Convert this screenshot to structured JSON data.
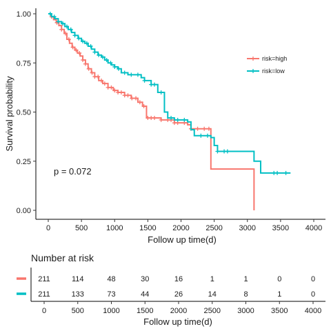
{
  "chart_data": {
    "type": "line",
    "subtype": "kaplan-meier",
    "xlabel": "Follow up time(d)",
    "ylabel": "Survival probability",
    "xlim": [
      0,
      4000
    ],
    "ylim": [
      0,
      1
    ],
    "x_ticks": [
      0,
      500,
      1000,
      1500,
      2000,
      2500,
      3000,
      3500,
      4000
    ],
    "y_ticks": [
      "0.00",
      "0.25",
      "0.50",
      "0.75",
      "1.00"
    ],
    "grid": false,
    "legend_position": "right",
    "annotation": "p = 0.072",
    "series": [
      {
        "name": "risk=high",
        "color": "#f8766d",
        "steps": [
          [
            0,
            1.0
          ],
          [
            40,
            0.985
          ],
          [
            80,
            0.97
          ],
          [
            120,
            0.955
          ],
          [
            160,
            0.94
          ],
          [
            200,
            0.92
          ],
          [
            240,
            0.9
          ],
          [
            280,
            0.87
          ],
          [
            320,
            0.85
          ],
          [
            360,
            0.83
          ],
          [
            400,
            0.815
          ],
          [
            440,
            0.8
          ],
          [
            480,
            0.785
          ],
          [
            520,
            0.765
          ],
          [
            560,
            0.745
          ],
          [
            600,
            0.72
          ],
          [
            650,
            0.7
          ],
          [
            700,
            0.68
          ],
          [
            760,
            0.66
          ],
          [
            820,
            0.645
          ],
          [
            900,
            0.625
          ],
          [
            980,
            0.61
          ],
          [
            1050,
            0.6
          ],
          [
            1150,
            0.585
          ],
          [
            1250,
            0.57
          ],
          [
            1350,
            0.55
          ],
          [
            1420,
            0.53
          ],
          [
            1480,
            0.47
          ],
          [
            1700,
            0.46
          ],
          [
            1900,
            0.445
          ],
          [
            2100,
            0.435
          ],
          [
            2150,
            0.415
          ],
          [
            2450,
            0.21
          ],
          [
            3100,
            0.0
          ]
        ],
        "end_x": 3100,
        "censor_x": [
          50,
          130,
          200,
          260,
          310,
          370,
          420,
          470,
          520,
          560,
          610,
          660,
          700,
          750,
          800,
          850,
          900,
          950,
          1000,
          1050,
          1100,
          1150,
          1200,
          1260,
          1320,
          1380,
          1440,
          1500,
          1550,
          1600,
          1700,
          1800,
          1850,
          1900,
          1950,
          2050,
          2150,
          2250,
          2350,
          2420
        ]
      },
      {
        "name": "risk=low",
        "color": "#00bfc4",
        "steps": [
          [
            0,
            1.0
          ],
          [
            50,
            0.985
          ],
          [
            100,
            0.975
          ],
          [
            150,
            0.96
          ],
          [
            200,
            0.95
          ],
          [
            250,
            0.935
          ],
          [
            300,
            0.92
          ],
          [
            350,
            0.905
          ],
          [
            400,
            0.89
          ],
          [
            450,
            0.875
          ],
          [
            500,
            0.86
          ],
          [
            550,
            0.85
          ],
          [
            600,
            0.835
          ],
          [
            650,
            0.82
          ],
          [
            700,
            0.805
          ],
          [
            750,
            0.79
          ],
          [
            800,
            0.78
          ],
          [
            850,
            0.765
          ],
          [
            900,
            0.75
          ],
          [
            950,
            0.74
          ],
          [
            1000,
            0.73
          ],
          [
            1050,
            0.72
          ],
          [
            1100,
            0.7
          ],
          [
            1200,
            0.69
          ],
          [
            1400,
            0.675
          ],
          [
            1450,
            0.66
          ],
          [
            1550,
            0.64
          ],
          [
            1650,
            0.6
          ],
          [
            1750,
            0.5
          ],
          [
            1800,
            0.47
          ],
          [
            1900,
            0.46
          ],
          [
            2100,
            0.45
          ],
          [
            2150,
            0.41
          ],
          [
            2200,
            0.38
          ],
          [
            2450,
            0.37
          ],
          [
            2500,
            0.33
          ],
          [
            2550,
            0.3
          ],
          [
            3100,
            0.25
          ],
          [
            3200,
            0.19
          ],
          [
            3650,
            0.19
          ]
        ],
        "end_x": 3650,
        "censor_x": [
          30,
          90,
          150,
          220,
          280,
          340,
          400,
          460,
          520,
          580,
          640,
          700,
          760,
          820,
          880,
          940,
          1000,
          1060,
          1150,
          1250,
          1350,
          1450,
          1550,
          1600,
          1700,
          1850,
          1950,
          2050,
          2300,
          2400,
          2550,
          2650,
          2700,
          3400,
          3450,
          3580
        ]
      }
    ],
    "risk_table": {
      "title": "Number at risk",
      "xlabel": "Follow up time(d)",
      "times": [
        0,
        500,
        1000,
        1500,
        2000,
        2500,
        3000,
        3500,
        4000
      ],
      "rows": [
        {
          "group": "risk=high",
          "color": "#f8766d",
          "counts": [
            211,
            114,
            48,
            30,
            16,
            1,
            1,
            0,
            0
          ]
        },
        {
          "group": "risk=low",
          "color": "#00bfc4",
          "counts": [
            211,
            133,
            73,
            44,
            26,
            14,
            8,
            1,
            0
          ]
        }
      ]
    }
  }
}
